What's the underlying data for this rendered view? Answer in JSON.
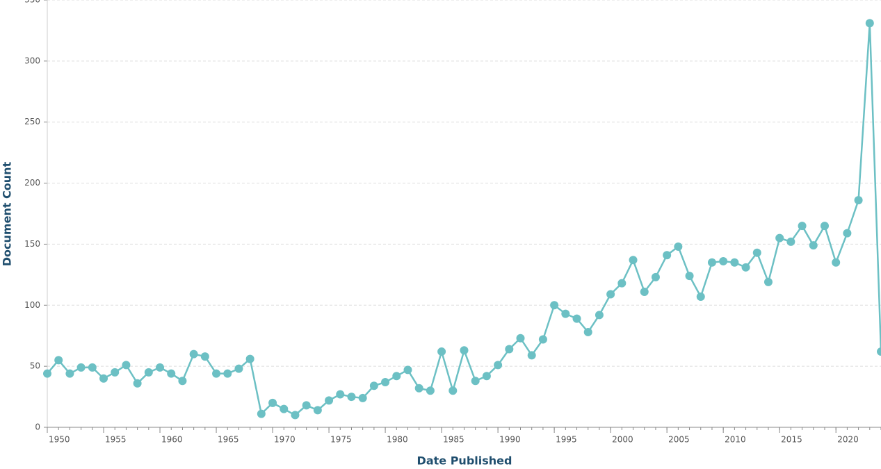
{
  "chart_data": {
    "type": "line",
    "xlabel": "Date Published",
    "ylabel": "Document Count",
    "x": [
      1950,
      1951,
      1952,
      1953,
      1954,
      1955,
      1956,
      1957,
      1958,
      1959,
      1960,
      1961,
      1962,
      1963,
      1964,
      1965,
      1966,
      1967,
      1968,
      1969,
      1970,
      1971,
      1972,
      1973,
      1974,
      1975,
      1976,
      1977,
      1978,
      1979,
      1980,
      1981,
      1982,
      1983,
      1984,
      1985,
      1986,
      1987,
      1988,
      1989,
      1990,
      1991,
      1992,
      1993,
      1994,
      1995,
      1996,
      1997,
      1998,
      1999,
      2000,
      2001,
      2002,
      2003,
      2004,
      2005,
      2006,
      2007,
      2008,
      2009,
      2010,
      2011,
      2012,
      2013,
      2014,
      2015,
      2016,
      2017,
      2018,
      2019,
      2020,
      2021,
      2022,
      2023,
      2024
    ],
    "series": [
      {
        "name": "Document Count",
        "color": "#6cc0c4",
        "values": [
          44,
          55,
          44,
          49,
          49,
          40,
          45,
          51,
          36,
          45,
          49,
          44,
          38,
          60,
          58,
          44,
          44,
          48,
          56,
          11,
          20,
          15,
          10,
          18,
          14,
          22,
          27,
          25,
          24,
          34,
          37,
          42,
          47,
          32,
          30,
          62,
          30,
          63,
          38,
          42,
          51,
          64,
          73,
          59,
          72,
          100,
          93,
          89,
          78,
          92,
          109,
          118,
          137,
          111,
          123,
          141,
          148,
          124,
          107,
          135,
          136,
          135,
          131,
          143,
          119,
          155,
          152,
          165,
          149,
          165,
          135,
          159,
          186,
          331,
          62
        ]
      }
    ],
    "xlim": [
      1950,
      2024
    ],
    "xticks": [
      1950,
      1955,
      1960,
      1965,
      1970,
      1975,
      1980,
      1985,
      1990,
      1995,
      2000,
      2005,
      2010,
      2015,
      2020
    ],
    "ylim": [
      0,
      350
    ],
    "yticks": [
      0,
      50,
      100,
      150,
      200,
      250,
      300,
      350
    ],
    "grid": true
  }
}
